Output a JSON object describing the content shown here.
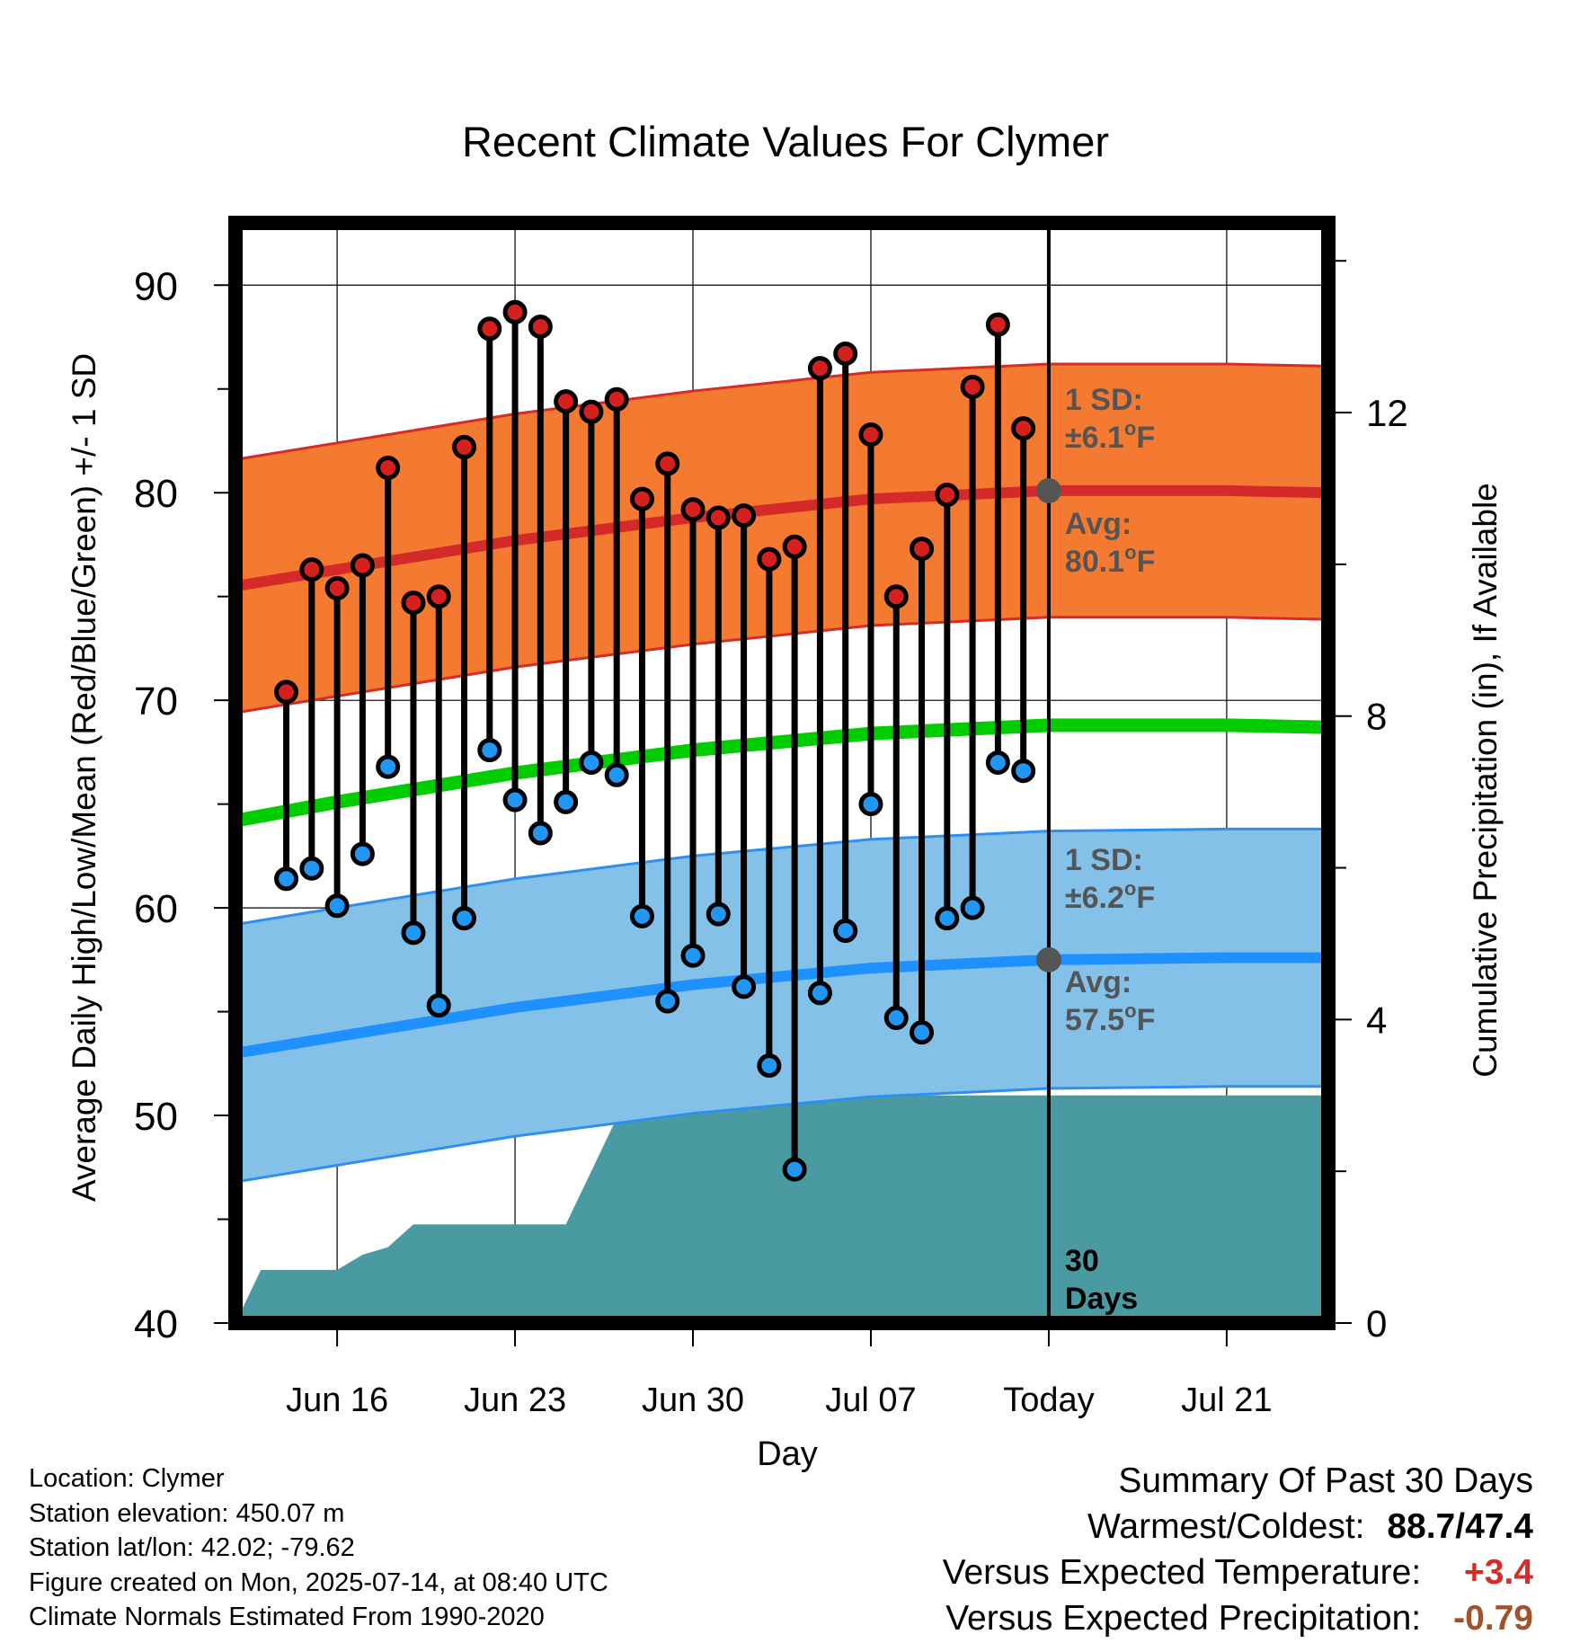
{
  "chart_data": {
    "type": "line",
    "title": "Recent Climate Values For Clymer",
    "xlabel": "Day",
    "ylabel": "Average Daily High/Low/Mean (Red/Blue/Green) +/- 1 SD",
    "y2label": "Cumulative Precipitation (in), If Available",
    "ylim": [
      40,
      93
    ],
    "y2lim": [
      0,
      14.5
    ],
    "yticks": [
      40,
      50,
      60,
      70,
      80,
      90
    ],
    "y2ticks": [
      0,
      4,
      8,
      12
    ],
    "xlim": [
      "2025-06-12",
      "2025-07-25"
    ],
    "xticks": [
      {
        "date": "2025-06-16",
        "label": "Jun 16"
      },
      {
        "date": "2025-06-23",
        "label": "Jun 23"
      },
      {
        "date": "2025-06-30",
        "label": "Jun 30"
      },
      {
        "date": "2025-07-07",
        "label": "Jul 07"
      },
      {
        "date": "2025-07-14",
        "label": "Today"
      },
      {
        "date": "2025-07-21",
        "label": "Jul 21"
      }
    ],
    "today": "2025-07-14",
    "grid": true,
    "daily": [
      {
        "date": "2025-06-14",
        "high": 70.4,
        "low": 61.4
      },
      {
        "date": "2025-06-15",
        "high": 76.3,
        "low": 61.9
      },
      {
        "date": "2025-06-16",
        "high": 75.4,
        "low": 60.1
      },
      {
        "date": "2025-06-17",
        "high": 76.5,
        "low": 62.6
      },
      {
        "date": "2025-06-18",
        "high": 81.2,
        "low": 66.8
      },
      {
        "date": "2025-06-19",
        "high": 74.7,
        "low": 58.8
      },
      {
        "date": "2025-06-20",
        "high": 75.0,
        "low": 55.3
      },
      {
        "date": "2025-06-21",
        "high": 82.2,
        "low": 59.5
      },
      {
        "date": "2025-06-22",
        "high": 87.9,
        "low": 67.6
      },
      {
        "date": "2025-06-23",
        "high": 88.7,
        "low": 65.2
      },
      {
        "date": "2025-06-24",
        "high": 88.0,
        "low": 63.6
      },
      {
        "date": "2025-06-25",
        "high": 84.4,
        "low": 65.1
      },
      {
        "date": "2025-06-26",
        "high": 83.9,
        "low": 67.0
      },
      {
        "date": "2025-06-27",
        "high": 84.5,
        "low": 66.4
      },
      {
        "date": "2025-06-28",
        "high": 79.7,
        "low": 59.6
      },
      {
        "date": "2025-06-29",
        "high": 81.4,
        "low": 55.5
      },
      {
        "date": "2025-06-30",
        "high": 79.2,
        "low": 57.7
      },
      {
        "date": "2025-07-01",
        "high": 78.8,
        "low": 59.7
      },
      {
        "date": "2025-07-02",
        "high": 78.9,
        "low": 56.2
      },
      {
        "date": "2025-07-03",
        "high": 76.8,
        "low": 52.4
      },
      {
        "date": "2025-07-04",
        "high": 77.4,
        "low": 47.4
      },
      {
        "date": "2025-07-05",
        "high": 86.0,
        "low": 55.9
      },
      {
        "date": "2025-07-06",
        "high": 86.7,
        "low": 58.9
      },
      {
        "date": "2025-07-07",
        "high": 82.8,
        "low": 65.0
      },
      {
        "date": "2025-07-08",
        "high": 75.0,
        "low": 54.7
      },
      {
        "date": "2025-07-09",
        "high": 77.3,
        "low": 54.0
      },
      {
        "date": "2025-07-10",
        "high": 79.9,
        "low": 59.5
      },
      {
        "date": "2025-07-11",
        "high": 85.1,
        "low": 60.0
      },
      {
        "date": "2025-07-12",
        "high": 88.1,
        "low": 67.0
      },
      {
        "date": "2025-07-13",
        "high": 83.1,
        "low": 66.6
      }
    ],
    "normals": [
      {
        "date": "2025-06-12",
        "high": 75.5,
        "low": 53.0,
        "mean": 64.2
      },
      {
        "date": "2025-06-16",
        "high": 76.3,
        "low": 53.8,
        "mean": 65.1
      },
      {
        "date": "2025-06-23",
        "high": 77.7,
        "low": 55.2,
        "mean": 66.5
      },
      {
        "date": "2025-06-30",
        "high": 78.8,
        "low": 56.3,
        "mean": 67.6
      },
      {
        "date": "2025-07-07",
        "high": 79.7,
        "low": 57.1,
        "mean": 68.4
      },
      {
        "date": "2025-07-14",
        "high": 80.1,
        "low": 57.5,
        "mean": 68.8
      },
      {
        "date": "2025-07-21",
        "high": 80.1,
        "low": 57.6,
        "mean": 68.8
      },
      {
        "date": "2025-07-25",
        "high": 80.0,
        "low": 57.6,
        "mean": 68.7
      }
    ],
    "high_sd": 6.1,
    "low_sd": 6.2,
    "precip_cumulative": [
      {
        "date": "2025-06-12",
        "value": 0.0
      },
      {
        "date": "2025-06-13",
        "value": 0.7
      },
      {
        "date": "2025-06-15",
        "value": 0.7
      },
      {
        "date": "2025-06-16",
        "value": 0.7
      },
      {
        "date": "2025-06-17",
        "value": 0.9
      },
      {
        "date": "2025-06-18",
        "value": 1.0
      },
      {
        "date": "2025-06-19",
        "value": 1.3
      },
      {
        "date": "2025-06-25",
        "value": 1.3
      },
      {
        "date": "2025-06-26",
        "value": 2.0
      },
      {
        "date": "2025-06-27",
        "value": 2.7
      },
      {
        "date": "2025-06-29",
        "value": 2.7
      },
      {
        "date": "2025-06-30",
        "value": 2.9
      },
      {
        "date": "2025-07-02",
        "value": 2.9
      },
      {
        "date": "2025-07-03",
        "value": 2.95
      },
      {
        "date": "2025-07-06",
        "value": 2.95
      },
      {
        "date": "2025-07-07",
        "value": 3.0
      },
      {
        "date": "2025-07-25",
        "value": 3.0
      }
    ],
    "annotations": {
      "high_sd_label": "1 SD:",
      "high_sd_value": "±6.1°F",
      "high_avg_label": "Avg:",
      "high_avg_value": "80.1°F",
      "low_sd_label": "1 SD:",
      "low_sd_value": "±6.2°F",
      "low_avg_label": "Avg:",
      "low_avg_value": "57.5°F",
      "days_num": "30",
      "days_word": "Days"
    },
    "colors": {
      "high_band": "#f37a30",
      "high_edge": "#d62b27",
      "high_mean": "#d42a2a",
      "low_band": "#84c1e8",
      "low_edge": "#2d8ff0",
      "low_mean": "#1e90ff",
      "mean": "#00cc00",
      "precip": "#4a9aa2",
      "high_dot": "#d62020",
      "low_dot": "#2196f3",
      "annotation": "#555555"
    }
  },
  "info": {
    "location": "Location: Clymer",
    "elevation": "Station elevation: 450.07 m",
    "latlon": "Station lat/lon: 42.02; -79.62",
    "created": "Figure created on Mon, 2025-07-14, at 08:40 UTC",
    "normals": "Climate Normals Estimated From 1990-2020"
  },
  "summary": {
    "title": "Summary Of Past 30 Days",
    "warmest_label": "Warmest/Coldest:",
    "warmest_value": "88.7/47.4",
    "temp_label": "Versus Expected Temperature:",
    "temp_value": "+3.4",
    "temp_color": "#d62b27",
    "precip_label": "Versus Expected Precipitation:",
    "precip_value": "-0.79",
    "precip_color": "#a0522d"
  }
}
